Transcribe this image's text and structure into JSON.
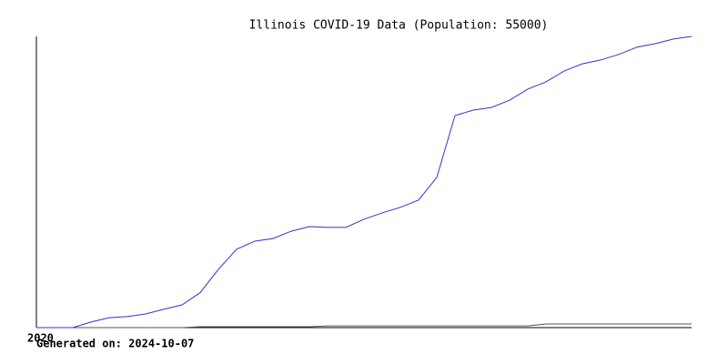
{
  "chart_data": {
    "type": "line",
    "title": "Illinois COVID-19 Data (Population: 55000)",
    "footer": "Generated on: 2024-10-07",
    "categories": [
      "2020",
      null,
      null,
      null,
      null,
      null,
      null,
      null,
      null,
      null,
      null,
      null,
      null,
      null,
      null,
      null,
      null,
      null,
      null,
      null,
      null,
      null,
      null,
      null,
      null,
      null,
      null,
      null,
      null,
      null,
      null,
      null,
      null,
      null,
      null,
      null,
      null
    ],
    "series": [
      {
        "color": "#3333cc",
        "values": [
          0,
          0,
          0,
          1.9,
          3.4,
          3.8,
          4.7,
          6.3,
          7.8,
          12,
          20,
          26.9,
          29.7,
          30.6,
          33.1,
          34.7,
          34.4,
          34.4,
          37.2,
          39.4,
          41.3,
          43.8,
          51.6,
          72.8,
          74.7,
          75.6,
          78.1,
          81.9,
          84.4,
          88.1,
          90.6,
          91.9,
          93.8,
          96.3,
          97.5,
          99.1,
          100
        ]
      },
      {
        "color": "#555555",
        "values": [
          0,
          0,
          0,
          0,
          0,
          0,
          0,
          0,
          0,
          0.3,
          0.3,
          0.3,
          0.3,
          0.3,
          0.3,
          0.3,
          0.6,
          0.6,
          0.6,
          0.6,
          0.6,
          0.6,
          0.6,
          0.6,
          0.6,
          0.6,
          0.6,
          0.6,
          1.25,
          1.25,
          1.25,
          1.25,
          1.25,
          1.25,
          1.25,
          1.25,
          1.25
        ]
      }
    ],
    "ylim": [
      0,
      100
    ]
  }
}
